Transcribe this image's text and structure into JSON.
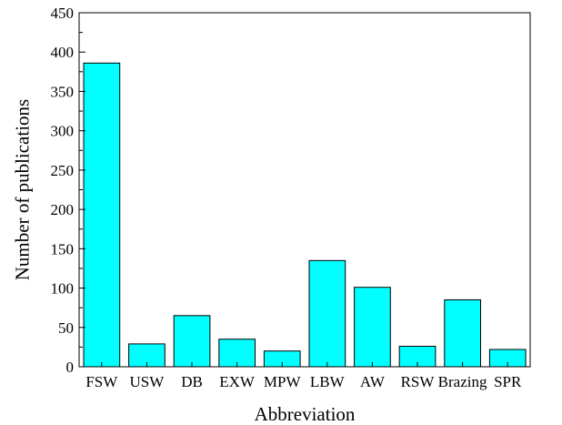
{
  "chart_data": {
    "type": "bar",
    "title": "",
    "xlabel": "Abbreviation",
    "ylabel": "Number of publications",
    "categories": [
      "FSW",
      "USW",
      "DB",
      "EXW",
      "MPW",
      "LBW",
      "AW",
      "RSW",
      "Brazing",
      "SPR"
    ],
    "values": [
      386,
      29,
      65,
      35,
      20,
      135,
      101,
      26,
      85,
      22
    ],
    "ylim": [
      0,
      450
    ],
    "yticks": [
      0,
      50,
      100,
      150,
      200,
      250,
      300,
      350,
      400,
      450
    ],
    "grid": false,
    "legend": "none",
    "bar_color": "#00ffff",
    "edge_color": "#000000"
  }
}
